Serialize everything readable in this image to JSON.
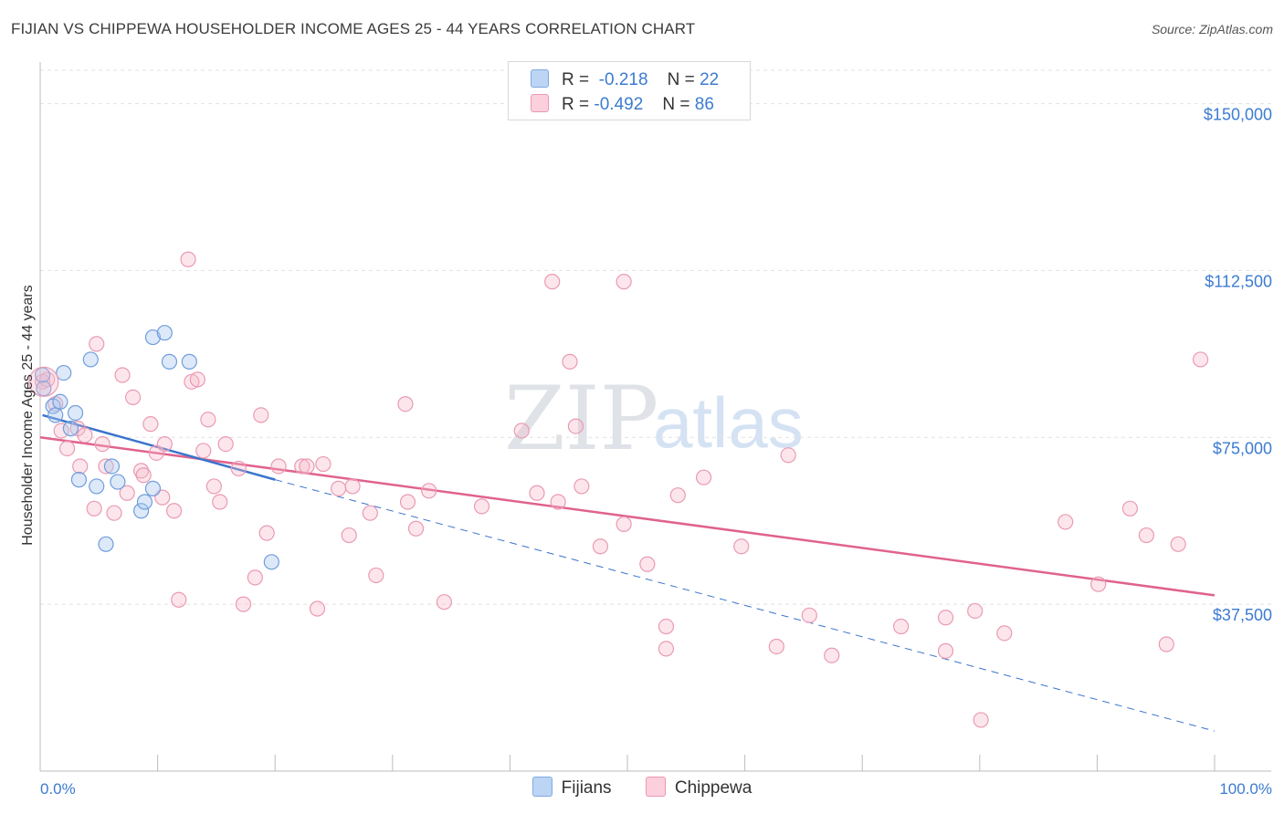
{
  "header": {
    "title": "FIJIAN VS CHIPPEWA HOUSEHOLDER INCOME AGES 25 - 44 YEARS CORRELATION CHART",
    "source": "Source: ZipAtlas.com"
  },
  "watermark": {
    "zip": "ZIP",
    "atlas": "atlas"
  },
  "legend": {
    "rows": [
      {
        "r_label": "R =",
        "r_value": "-0.218",
        "n_label": "N =",
        "n_value": "22",
        "color": "#a9c8f0"
      },
      {
        "r_label": "R =",
        "r_value": "-0.492",
        "n_label": "N =",
        "n_value": "86",
        "color": "#f6b8c8"
      }
    ]
  },
  "bottom_legend": {
    "fijians": "Fijians",
    "chippewa": "Chippewa"
  },
  "chart_data": {
    "type": "scatter",
    "title": "FIJIAN VS CHIPPEWA HOUSEHOLDER INCOME AGES 25 - 44 YEARS CORRELATION CHART",
    "ylabel": "Householder Income Ages 25 - 44 years",
    "xlabel": "",
    "xlim": [
      0,
      100
    ],
    "ylim": [
      0,
      157500
    ],
    "x_tick_labels": [
      "0.0%",
      "100.0%"
    ],
    "y_ticks": [
      37500,
      75000,
      112500,
      150000
    ],
    "y_tick_labels": [
      "$37,500",
      "$75,000",
      "$112,500",
      "$150,000"
    ],
    "grid": true,
    "colors": {
      "fijians": "#5a93dc",
      "chippewa": "#ea7aa0",
      "fijians_line": "#3a74cc",
      "chippewa_line": "#e0628e"
    },
    "series": [
      {
        "name": "Fijians",
        "points": [
          [
            0.2,
            89000
          ],
          [
            0.3,
            86000
          ],
          [
            1.1,
            82000
          ],
          [
            1.3,
            80000
          ],
          [
            1.7,
            83000
          ],
          [
            2.0,
            89500
          ],
          [
            2.6,
            77000
          ],
          [
            3.0,
            80500
          ],
          [
            3.3,
            65500
          ],
          [
            4.3,
            92500
          ],
          [
            4.8,
            64000
          ],
          [
            5.6,
            51000
          ],
          [
            6.1,
            68500
          ],
          [
            6.6,
            65000
          ],
          [
            8.6,
            58500
          ],
          [
            8.9,
            60500
          ],
          [
            9.6,
            63500
          ],
          [
            9.6,
            97500
          ],
          [
            10.6,
            98500
          ],
          [
            11.0,
            92000
          ],
          [
            12.7,
            92000
          ],
          [
            19.7,
            47000
          ]
        ],
        "trend": {
          "x1": 0.2,
          "y1": 80000,
          "x2": 20,
          "y2": 65500,
          "dash_to_x": 100,
          "dash_to_y": 9000
        }
      },
      {
        "name": "Chippewa",
        "points": [
          [
            0.2,
            87500
          ],
          [
            0.6,
            88000
          ],
          [
            1.3,
            82500
          ],
          [
            1.8,
            76500
          ],
          [
            2.3,
            72500
          ],
          [
            3.2,
            77000
          ],
          [
            3.4,
            68500
          ],
          [
            3.8,
            75500
          ],
          [
            4.6,
            59000
          ],
          [
            4.8,
            96000
          ],
          [
            5.3,
            73500
          ],
          [
            5.6,
            68500
          ],
          [
            6.3,
            58000
          ],
          [
            7.0,
            89000
          ],
          [
            7.4,
            62500
          ],
          [
            7.9,
            84000
          ],
          [
            8.6,
            67500
          ],
          [
            8.8,
            66500
          ],
          [
            9.4,
            78000
          ],
          [
            9.9,
            71500
          ],
          [
            10.4,
            61500
          ],
          [
            10.6,
            73500
          ],
          [
            11.4,
            58500
          ],
          [
            11.8,
            38500
          ],
          [
            12.6,
            115000
          ],
          [
            12.9,
            87500
          ],
          [
            13.4,
            88000
          ],
          [
            13.9,
            72000
          ],
          [
            14.3,
            79000
          ],
          [
            14.8,
            64000
          ],
          [
            15.3,
            60500
          ],
          [
            15.8,
            73500
          ],
          [
            16.9,
            68000
          ],
          [
            17.3,
            37500
          ],
          [
            18.3,
            43500
          ],
          [
            18.8,
            80000
          ],
          [
            19.3,
            53500
          ],
          [
            20.3,
            68500
          ],
          [
            22.3,
            68500
          ],
          [
            22.7,
            68500
          ],
          [
            23.6,
            36500
          ],
          [
            24.1,
            69000
          ],
          [
            25.4,
            63500
          ],
          [
            26.3,
            53000
          ],
          [
            26.6,
            64000
          ],
          [
            28.1,
            58000
          ],
          [
            28.6,
            44000
          ],
          [
            31.1,
            82500
          ],
          [
            31.3,
            60500
          ],
          [
            32.0,
            54500
          ],
          [
            33.1,
            63000
          ],
          [
            34.4,
            38000
          ],
          [
            37.6,
            59500
          ],
          [
            41.0,
            76500
          ],
          [
            42.3,
            62500
          ],
          [
            43.6,
            110000
          ],
          [
            44.1,
            60500
          ],
          [
            45.1,
            92000
          ],
          [
            45.6,
            77500
          ],
          [
            46.1,
            64000
          ],
          [
            47.7,
            50500
          ],
          [
            49.7,
            55500
          ],
          [
            49.7,
            110000
          ],
          [
            51.7,
            46500
          ],
          [
            53.3,
            27500
          ],
          [
            53.3,
            32500
          ],
          [
            54.3,
            62000
          ],
          [
            56.5,
            66000
          ],
          [
            59.7,
            50500
          ],
          [
            62.7,
            28000
          ],
          [
            63.7,
            71000
          ],
          [
            65.5,
            35000
          ],
          [
            67.4,
            26000
          ],
          [
            73.3,
            32500
          ],
          [
            77.1,
            27000
          ],
          [
            77.1,
            34500
          ],
          [
            79.6,
            36000
          ],
          [
            80.1,
            11500
          ],
          [
            82.1,
            31000
          ],
          [
            87.3,
            56000
          ],
          [
            90.1,
            42000
          ],
          [
            92.8,
            59000
          ],
          [
            94.2,
            53000
          ],
          [
            95.9,
            28500
          ],
          [
            96.9,
            51000
          ],
          [
            98.8,
            92500
          ]
        ],
        "trend": {
          "x1": 0,
          "y1": 75000,
          "x2": 100,
          "y2": 39500
        }
      }
    ]
  }
}
